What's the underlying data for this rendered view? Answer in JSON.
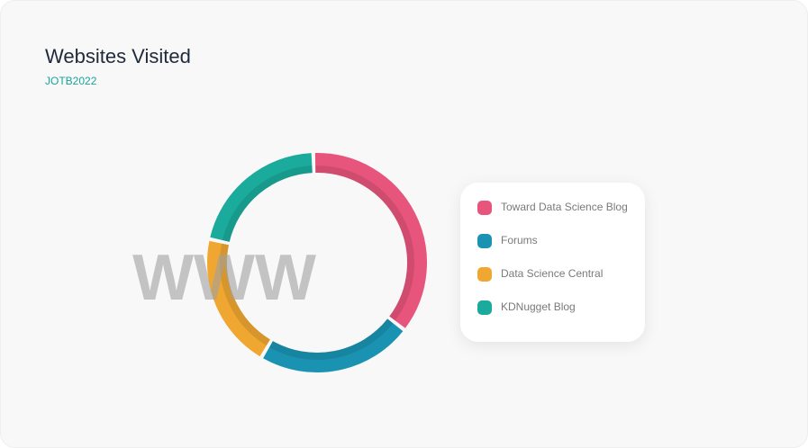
{
  "chart_data": {
    "type": "donut",
    "title": "Websites Visited",
    "subtitle": "JOTB2022",
    "center_text": "WWW",
    "categories": [
      "Toward Data Science Blog",
      "Forums",
      "Data Science Central",
      "KDNugget Blog"
    ],
    "values": [
      36,
      23,
      20,
      21
    ],
    "colors": [
      "#e8557c",
      "#1a93b3",
      "#f0a732",
      "#1aab9c"
    ]
  }
}
